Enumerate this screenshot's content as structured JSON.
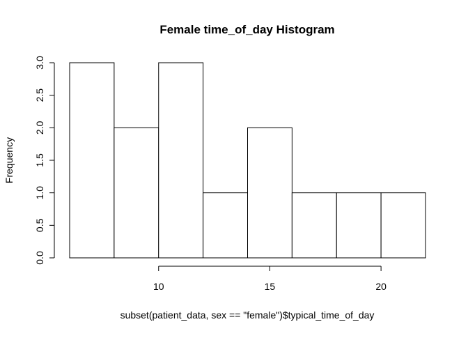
{
  "chart_data": {
    "type": "bar",
    "subtype": "histogram",
    "title": "Female time_of_day Histogram",
    "xlabel": "subset(patient_data, sex == \"female\")$typical_time_of_day",
    "ylabel": "Frequency",
    "bins": [
      {
        "start": 6,
        "end": 8,
        "count": 3
      },
      {
        "start": 8,
        "end": 10,
        "count": 2
      },
      {
        "start": 10,
        "end": 12,
        "count": 3
      },
      {
        "start": 12,
        "end": 14,
        "count": 1
      },
      {
        "start": 14,
        "end": 16,
        "count": 2
      },
      {
        "start": 16,
        "end": 18,
        "count": 1
      },
      {
        "start": 18,
        "end": 20,
        "count": 1
      },
      {
        "start": 20,
        "end": 22,
        "count": 1
      }
    ],
    "xlim": [
      6,
      22
    ],
    "ylim": [
      0,
      3
    ],
    "x_ticks": [
      {
        "value": 10,
        "label": "10"
      },
      {
        "value": 15,
        "label": "15"
      },
      {
        "value": 20,
        "label": "20"
      }
    ],
    "y_ticks": [
      {
        "value": 0,
        "label": "0.0"
      },
      {
        "value": 0.5,
        "label": "0.5"
      },
      {
        "value": 1,
        "label": "1.0"
      },
      {
        "value": 1.5,
        "label": "1.5"
      },
      {
        "value": 2,
        "label": "2.0"
      },
      {
        "value": 2.5,
        "label": "2.5"
      },
      {
        "value": 3,
        "label": "3.0"
      }
    ],
    "grid": false,
    "bar_fill": "#ffffff",
    "bar_stroke": "#000000"
  }
}
